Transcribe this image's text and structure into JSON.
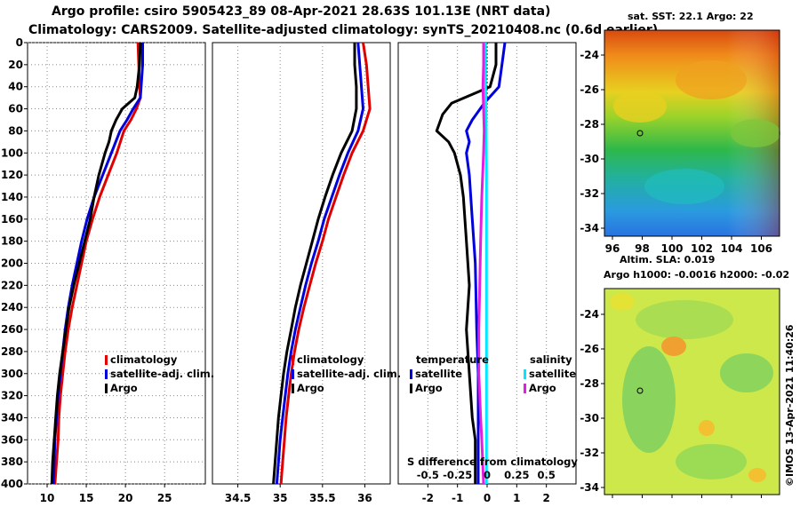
{
  "title_line1": "Argo profile: csiro 5905423_89 08-Apr-2021 28.63S 101.13E (NRT data)",
  "title_line2": "Climatology: CARS2009. Satellite-adjusted climatology: synTS_20210408.nc (0.6d earlier)",
  "colors": {
    "climatology": "#e00000",
    "satellite": "#0000dd",
    "argo": "#000000",
    "sat_salinity": "#00e8ff",
    "argo_salinity": "#e020e0",
    "grid": "#888888"
  },
  "chart_data": [
    {
      "type": "line",
      "id": "temperature",
      "title": "",
      "xlabel": "",
      "ylabel": "",
      "xlim": [
        7.5,
        30.2
      ],
      "ylim": [
        400,
        0
      ],
      "x_ticks": [
        10,
        15,
        20,
        25
      ],
      "y_ticks": [
        0,
        20,
        40,
        60,
        80,
        100,
        120,
        140,
        160,
        180,
        200,
        220,
        240,
        260,
        280,
        300,
        320,
        340,
        360,
        380,
        400
      ],
      "legend": [
        "climatology",
        "satellite-adj. clim.",
        "Argo"
      ],
      "legend_position": "lower-right",
      "series": [
        {
          "name": "climatology",
          "color_key": "climatology",
          "points": [
            [
              21.6,
              0
            ],
            [
              21.7,
              20
            ],
            [
              21.8,
              40
            ],
            [
              21.9,
              50
            ],
            [
              21.4,
              60
            ],
            [
              20.7,
              70
            ],
            [
              19.8,
              80
            ],
            [
              18.9,
              100
            ],
            [
              17.8,
              120
            ],
            [
              16.7,
              140
            ],
            [
              15.8,
              160
            ],
            [
              15.0,
              180
            ],
            [
              14.4,
              200
            ],
            [
              13.8,
              220
            ],
            [
              13.2,
              240
            ],
            [
              12.7,
              260
            ],
            [
              12.3,
              280
            ],
            [
              12.0,
              300
            ],
            [
              11.7,
              320
            ],
            [
              11.5,
              340
            ],
            [
              11.4,
              360
            ],
            [
              11.2,
              380
            ],
            [
              11.0,
              400
            ]
          ]
        },
        {
          "name": "satellite-adj. clim.",
          "color_key": "satellite",
          "points": [
            [
              22.2,
              0
            ],
            [
              22.2,
              20
            ],
            [
              22.0,
              40
            ],
            [
              21.9,
              50
            ],
            [
              21.0,
              60
            ],
            [
              20.2,
              70
            ],
            [
              19.3,
              80
            ],
            [
              18.2,
              100
            ],
            [
              17.1,
              120
            ],
            [
              16.0,
              140
            ],
            [
              15.1,
              160
            ],
            [
              14.4,
              180
            ],
            [
              13.8,
              200
            ],
            [
              13.2,
              220
            ],
            [
              12.7,
              240
            ],
            [
              12.3,
              260
            ],
            [
              12.0,
              280
            ],
            [
              11.7,
              300
            ],
            [
              11.4,
              320
            ],
            [
              11.2,
              340
            ],
            [
              11.0,
              360
            ],
            [
              10.9,
              380
            ],
            [
              10.8,
              400
            ]
          ]
        },
        {
          "name": "Argo",
          "color_key": "argo",
          "points": [
            [
              21.9,
              0
            ],
            [
              21.8,
              20
            ],
            [
              21.5,
              40
            ],
            [
              21.2,
              50
            ],
            [
              20.4,
              55
            ],
            [
              19.6,
              60
            ],
            [
              18.8,
              70
            ],
            [
              18.2,
              80
            ],
            [
              17.9,
              90
            ],
            [
              17.4,
              100
            ],
            [
              17.0,
              110
            ],
            [
              16.6,
              120
            ],
            [
              16.0,
              140
            ],
            [
              15.5,
              160
            ],
            [
              14.8,
              180
            ],
            [
              14.1,
              200
            ],
            [
              13.4,
              220
            ],
            [
              12.8,
              240
            ],
            [
              12.4,
              260
            ],
            [
              12.0,
              280
            ],
            [
              11.6,
              300
            ],
            [
              11.3,
              320
            ],
            [
              11.1,
              340
            ],
            [
              10.9,
              360
            ],
            [
              10.7,
              380
            ],
            [
              10.6,
              400
            ]
          ]
        }
      ]
    },
    {
      "type": "line",
      "id": "salinity",
      "title": "",
      "xlabel": "",
      "ylabel": "",
      "xlim": [
        34.2,
        36.3
      ],
      "ylim": [
        400,
        0
      ],
      "x_ticks": [
        34.5,
        35,
        35.5,
        36
      ],
      "x_tick_labels": [
        "34.5",
        "35",
        "35.5",
        "36"
      ],
      "legend": [
        "climatology",
        "satellite-adj. clim.",
        "Argo"
      ],
      "legend_position": "lower-right",
      "series": [
        {
          "name": "climatology",
          "color_key": "climatology",
          "points": [
            [
              35.98,
              0
            ],
            [
              36.02,
              20
            ],
            [
              36.04,
              40
            ],
            [
              36.06,
              60
            ],
            [
              35.98,
              80
            ],
            [
              35.85,
              100
            ],
            [
              35.75,
              120
            ],
            [
              35.66,
              140
            ],
            [
              35.57,
              160
            ],
            [
              35.5,
              180
            ],
            [
              35.42,
              200
            ],
            [
              35.35,
              220
            ],
            [
              35.28,
              240
            ],
            [
              35.22,
              260
            ],
            [
              35.17,
              280
            ],
            [
              35.13,
              300
            ],
            [
              35.1,
              320
            ],
            [
              35.07,
              340
            ],
            [
              35.05,
              360
            ],
            [
              35.03,
              380
            ],
            [
              35.01,
              400
            ]
          ]
        },
        {
          "name": "satellite-adj. clim.",
          "color_key": "satellite",
          "points": [
            [
              35.92,
              0
            ],
            [
              35.94,
              20
            ],
            [
              35.96,
              40
            ],
            [
              35.98,
              60
            ],
            [
              35.92,
              80
            ],
            [
              35.8,
              100
            ],
            [
              35.7,
              120
            ],
            [
              35.61,
              140
            ],
            [
              35.52,
              160
            ],
            [
              35.45,
              180
            ],
            [
              35.37,
              200
            ],
            [
              35.3,
              220
            ],
            [
              35.24,
              240
            ],
            [
              35.18,
              260
            ],
            [
              35.13,
              280
            ],
            [
              35.09,
              300
            ],
            [
              35.06,
              320
            ],
            [
              35.03,
              340
            ],
            [
              35.0,
              360
            ],
            [
              34.98,
              380
            ],
            [
              34.96,
              400
            ]
          ]
        },
        {
          "name": "Argo",
          "color_key": "argo",
          "points": [
            [
              35.88,
              0
            ],
            [
              35.88,
              20
            ],
            [
              35.9,
              40
            ],
            [
              35.9,
              60
            ],
            [
              35.85,
              80
            ],
            [
              35.72,
              100
            ],
            [
              35.62,
              120
            ],
            [
              35.53,
              140
            ],
            [
              35.45,
              160
            ],
            [
              35.38,
              180
            ],
            [
              35.31,
              200
            ],
            [
              35.24,
              220
            ],
            [
              35.18,
              240
            ],
            [
              35.13,
              260
            ],
            [
              35.08,
              280
            ],
            [
              35.04,
              300
            ],
            [
              35.01,
              320
            ],
            [
              34.98,
              340
            ],
            [
              34.96,
              360
            ],
            [
              34.94,
              380
            ],
            [
              34.92,
              400
            ]
          ]
        }
      ]
    },
    {
      "type": "line",
      "id": "difference",
      "title": "S difference from climatology",
      "xlabel": "",
      "ylabel": "",
      "xlim": [
        -3,
        3
      ],
      "ylim": [
        400,
        0
      ],
      "x_ticks": [
        -2,
        -1,
        0,
        1,
        2
      ],
      "x_tick_labels": [
        "-2",
        "-1",
        "0",
        "1",
        "2"
      ],
      "top_ticks": [
        -0.5,
        -0.25,
        0,
        0.25,
        0.5
      ],
      "top_tick_labels": [
        "-0.5",
        "-0.25",
        "0",
        "0.25",
        "0.5"
      ],
      "legend": [
        "temperature: satellite",
        "temperature: Argo",
        "salinity: satellite",
        "salinity: Argo"
      ],
      "legend_position": "lower",
      "series": [
        {
          "name": "temperature satellite",
          "color_key": "satellite",
          "points": [
            [
              0.6,
              0
            ],
            [
              0.5,
              20
            ],
            [
              0.4,
              40
            ],
            [
              -0.1,
              55
            ],
            [
              -0.5,
              70
            ],
            [
              -0.7,
              80
            ],
            [
              -0.6,
              90
            ],
            [
              -0.7,
              100
            ],
            [
              -0.6,
              120
            ],
            [
              -0.5,
              160
            ],
            [
              -0.4,
              200
            ],
            [
              -0.35,
              260
            ],
            [
              -0.3,
              300
            ],
            [
              -0.3,
              360
            ],
            [
              -0.3,
              400
            ]
          ]
        },
        {
          "name": "temperature Argo",
          "color_key": "argo",
          "points": [
            [
              0.3,
              0
            ],
            [
              0.3,
              20
            ],
            [
              0.1,
              40
            ],
            [
              -1.2,
              55
            ],
            [
              -1.5,
              65
            ],
            [
              -1.7,
              80
            ],
            [
              -1.3,
              90
            ],
            [
              -1.1,
              100
            ],
            [
              -0.9,
              120
            ],
            [
              -0.8,
              140
            ],
            [
              -0.7,
              180
            ],
            [
              -0.6,
              220
            ],
            [
              -0.7,
              260
            ],
            [
              -0.6,
              300
            ],
            [
              -0.5,
              340
            ],
            [
              -0.4,
              360
            ],
            [
              -0.4,
              400
            ]
          ]
        },
        {
          "name": "salinity satellite",
          "color_key": "sat_salinity",
          "points": [
            [
              -0.05,
              0
            ],
            [
              -0.05,
              40
            ],
            [
              -0.03,
              80
            ],
            [
              -0.02,
              120
            ],
            [
              -0.02,
              160
            ],
            [
              -0.02,
              200
            ],
            [
              -0.02,
              240
            ],
            [
              -0.02,
              280
            ],
            [
              -0.02,
              320
            ],
            [
              -0.02,
              360
            ],
            [
              -0.02,
              400
            ]
          ]
        },
        {
          "name": "salinity Argo",
          "color_key": "argo_salinity",
          "points": [
            [
              -0.12,
              0
            ],
            [
              -0.12,
              20
            ],
            [
              -0.14,
              40
            ],
            [
              -0.12,
              60
            ],
            [
              -0.1,
              80
            ],
            [
              -0.12,
              100
            ],
            [
              -0.18,
              140
            ],
            [
              -0.22,
              180
            ],
            [
              -0.25,
              220
            ],
            [
              -0.28,
              260
            ],
            [
              -0.28,
              300
            ],
            [
              -0.22,
              340
            ],
            [
              -0.18,
              360
            ],
            [
              -0.15,
              380
            ],
            [
              -0.12,
              400
            ]
          ]
        }
      ]
    }
  ],
  "legend_labels": {
    "climatology": "climatology",
    "satellite_adj": "satellite-adj. clim.",
    "argo": "Argo",
    "temperature_header": "temperature",
    "salinity_header": "salinity",
    "satellite": "satellite",
    "argo_short": "Argo"
  },
  "diff_title": "S difference from climatology",
  "sst_map": {
    "title": "sat. SST: 22.1  Argo: 22",
    "lat_ticks": [
      "-24",
      "-26",
      "-28",
      "-30",
      "-32",
      "-34"
    ],
    "lon_ticks": [
      "96",
      "98",
      "100",
      "102",
      "104",
      "106"
    ]
  },
  "sla_map": {
    "title_line1": "Altim. SLA: 0.019",
    "title_line2": "Argo h1000: -0.0016 h2000: -0.02",
    "lat_ticks": [
      "-24",
      "-26",
      "-28",
      "-30",
      "-32",
      "-34"
    ]
  },
  "credit": "©IMOS 13-Apr-2021 11:40:26"
}
